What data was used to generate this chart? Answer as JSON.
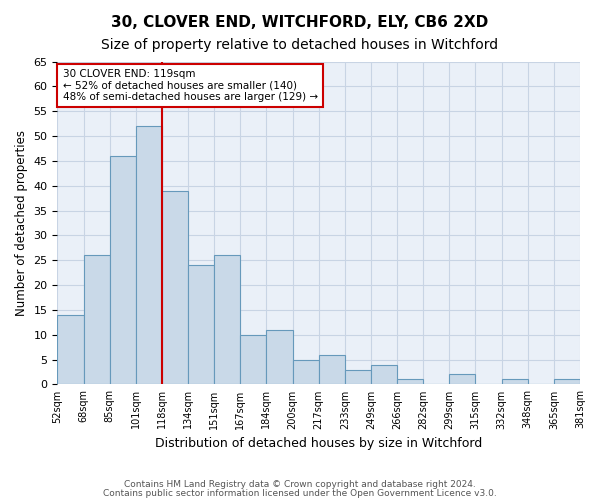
{
  "title1": "30, CLOVER END, WITCHFORD, ELY, CB6 2XD",
  "title2": "Size of property relative to detached houses in Witchford",
  "xlabel": "Distribution of detached houses by size in Witchford",
  "ylabel": "Number of detached properties",
  "footer1": "Contains HM Land Registry data © Crown copyright and database right 2024.",
  "footer2": "Contains public sector information licensed under the Open Government Licence v3.0.",
  "annotation_line1": "30 CLOVER END: 119sqm",
  "annotation_line2": "← 52% of detached houses are smaller (140)",
  "annotation_line3": "48% of semi-detached houses are larger (129) →",
  "bar_values": [
    14,
    26,
    46,
    52,
    39,
    24,
    26,
    10,
    11,
    5,
    6,
    3,
    4,
    1,
    0,
    2,
    0,
    1,
    0,
    1
  ],
  "bin_labels": [
    "52sqm",
    "68sqm",
    "85sqm",
    "101sqm",
    "118sqm",
    "134sqm",
    "151sqm",
    "167sqm",
    "184sqm",
    "200sqm",
    "217sqm",
    "233sqm",
    "249sqm",
    "266sqm",
    "282sqm",
    "299sqm",
    "315sqm",
    "332sqm",
    "348sqm",
    "365sqm",
    "381sqm"
  ],
  "bar_color": "#c9d9e8",
  "bar_edge_color": "#6699bb",
  "vline_color": "#cc0000",
  "ylim": [
    0,
    65
  ],
  "yticks": [
    0,
    5,
    10,
    15,
    20,
    25,
    30,
    35,
    40,
    45,
    50,
    55,
    60,
    65
  ],
  "grid_color": "#c8d4e4",
  "background_color": "#eaf0f8",
  "title_fontsize": 11,
  "subtitle_fontsize": 10
}
